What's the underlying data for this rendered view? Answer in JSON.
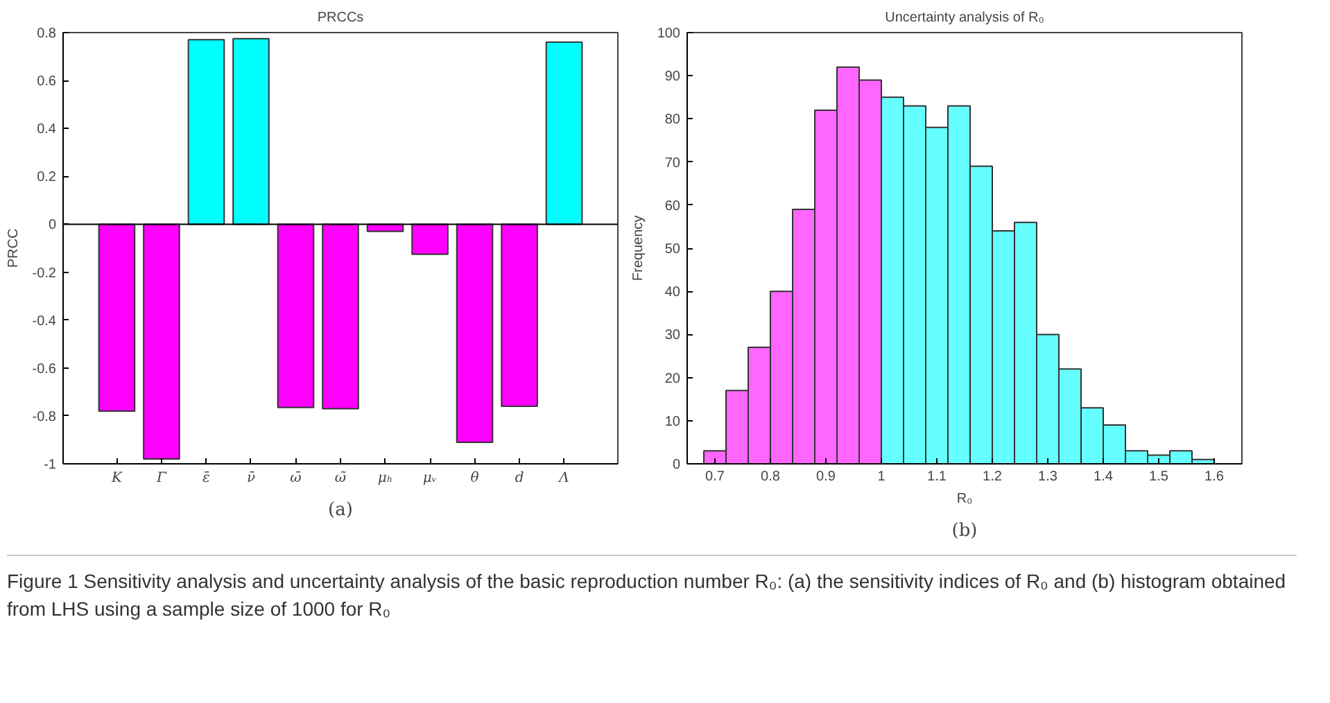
{
  "chart_data": [
    {
      "type": "bar",
      "title": "PRCCs",
      "ylabel": "PRCC",
      "categories": [
        "K",
        "Γ",
        "ε̄",
        "ν̄",
        "ω̄",
        "ω̃",
        "μₕ",
        "μᵥ",
        "θ",
        "d",
        "Λ"
      ],
      "values": [
        -0.78,
        -0.98,
        0.77,
        0.775,
        -0.765,
        -0.77,
        -0.03,
        -0.125,
        -0.91,
        -0.76,
        0.76
      ],
      "colors": [
        "#ff00ff",
        "#ff00ff",
        "#00ffff",
        "#00ffff",
        "#ff00ff",
        "#ff00ff",
        "#ff00ff",
        "#ff00ff",
        "#ff00ff",
        "#ff00ff",
        "#00ffff"
      ],
      "ylim": [
        -1,
        0.8
      ],
      "yticks": [
        -1,
        -0.8,
        -0.6,
        -0.4,
        -0.2,
        0,
        0.2,
        0.4,
        0.6,
        0.8
      ],
      "ref_lines": [
        {
          "axis": "y",
          "value": 0,
          "color": "#000000"
        }
      ],
      "annotations": [
        "(a)",
        "Figure 1  Sensitivity analysis and uncertainty analysis of the basic reproduction number R₀: (a) the sensitivity indices of R₀ and (b) histogram obtained from LHS using a sample size of 1000 for R₀"
      ]
    },
    {
      "type": "histogram",
      "title": "Uncertainty analysis of R₀",
      "xlabel": "R₀",
      "ylabel": "Frequency",
      "bins": [
        0.68,
        0.72,
        0.76,
        0.8,
        0.84,
        0.88,
        0.92,
        0.96,
        1.0,
        1.04,
        1.08,
        1.12,
        1.16,
        1.2,
        1.24,
        1.28,
        1.32,
        1.36,
        1.4,
        1.44,
        1.48,
        1.52,
        1.56,
        1.6
      ],
      "values": [
        3,
        17,
        27,
        40,
        59,
        82,
        92,
        89,
        85,
        83,
        78,
        83,
        69,
        54,
        56,
        30,
        22,
        13,
        9,
        3,
        2,
        3,
        1
      ],
      "colors": [
        "#ff66ff",
        "#ff66ff",
        "#ff66ff",
        "#ff66ff",
        "#ff66ff",
        "#ff66ff",
        "#ff66ff",
        "#ff66ff",
        "#66ffff",
        "#66ffff",
        "#66ffff",
        "#66ffff",
        "#66ffff",
        "#66ffff",
        "#66ffff",
        "#66ffff",
        "#66ffff",
        "#66ffff",
        "#66ffff",
        "#66ffff",
        "#66ffff",
        "#66ffff",
        "#66ffff"
      ],
      "xlim": [
        0.65,
        1.65
      ],
      "xticks": [
        0.7,
        0.8,
        0.9,
        1,
        1.1,
        1.2,
        1.3,
        1.4,
        1.5,
        1.6
      ],
      "ylim": [
        0,
        100
      ],
      "yticks": [
        0,
        10,
        20,
        30,
        40,
        50,
        60,
        70,
        80,
        90,
        100
      ],
      "annotations": [
        "(b)"
      ]
    }
  ]
}
